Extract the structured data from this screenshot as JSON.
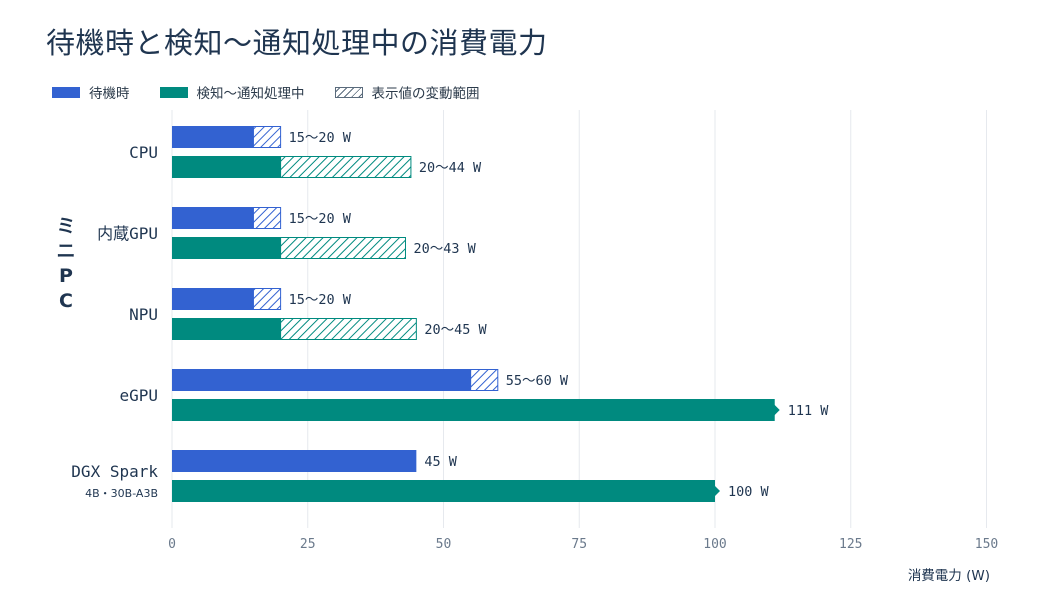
{
  "title": "待機時と検知〜通知処理中の消費電力",
  "legend": {
    "idle": "待機時",
    "active": "検知〜通知処理中",
    "range": "表示値の変動範囲"
  },
  "colors": {
    "idle": "#3362d1",
    "active": "#008a7f",
    "text": "#1f3550",
    "grid": "#e6e9ee",
    "axis_text": "#6b7a8c"
  },
  "chart_data": {
    "type": "bar",
    "orientation": "horizontal",
    "title": "待機時と検知〜通知処理中の消費電力",
    "xlabel": "消費電力 (W)",
    "group_label": "ミニPC",
    "xlim": [
      0,
      155
    ],
    "xticks": [
      0,
      25,
      50,
      75,
      100,
      125,
      150
    ],
    "grid": true,
    "legend_position": "top-left",
    "categories": [
      {
        "name": "CPU",
        "sub": "",
        "group": "ミニPC",
        "idle": {
          "min": 15,
          "max": 20,
          "label": "15〜20 W"
        },
        "active": {
          "min": 20,
          "max": 44,
          "label": "20〜44 W"
        }
      },
      {
        "name": "内蔵GPU",
        "sub": "",
        "group": "ミニPC",
        "idle": {
          "min": 15,
          "max": 20,
          "label": "15〜20 W"
        },
        "active": {
          "min": 20,
          "max": 43,
          "label": "20〜43 W"
        }
      },
      {
        "name": "NPU",
        "sub": "",
        "group": "ミニPC",
        "idle": {
          "min": 15,
          "max": 20,
          "label": "15〜20 W"
        },
        "active": {
          "min": 20,
          "max": 45,
          "label": "20〜45 W"
        }
      },
      {
        "name": "eGPU",
        "sub": "",
        "group": "",
        "idle": {
          "min": 55,
          "max": 60,
          "label": "55〜60 W"
        },
        "active": {
          "min": 111,
          "max": 111,
          "label": "111 W",
          "marker": true
        }
      },
      {
        "name": "DGX Spark",
        "sub": "4B・30B-A3B",
        "group": "",
        "idle": {
          "min": 45,
          "max": 45,
          "label": "45 W"
        },
        "active": {
          "min": 100,
          "max": 100,
          "label": "100 W",
          "marker": true
        }
      }
    ]
  }
}
